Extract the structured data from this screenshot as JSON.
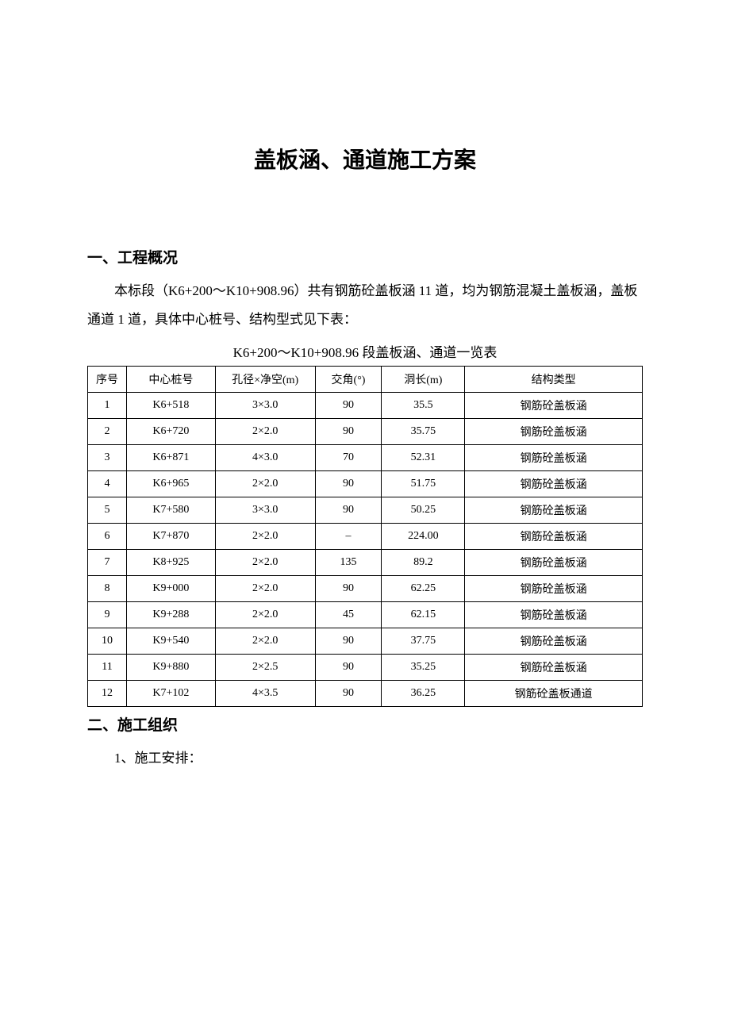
{
  "document": {
    "title": "盖板涵、通道施工方案",
    "section1": {
      "heading": "一、工程概况",
      "paragraph": "本标段（K6+200～K10+908.96）共有钢筋砼盖板涵 11 道，均为钢筋混凝土盖板涵，盖板通道 1 道，具体中心桩号、结构型式见下表：",
      "table_caption": "K6+200～K10+908.96 段盖板涵、通道一览表"
    },
    "table": {
      "columns": [
        "序号",
        "中心桩号",
        "孔径×净空(m)",
        "交角(°)",
        "洞长(m)",
        "结构类型"
      ],
      "rows": [
        [
          "1",
          "K6+518",
          "3×3.0",
          "90",
          "35.5",
          "钢筋砼盖板涵"
        ],
        [
          "2",
          "K6+720",
          "2×2.0",
          "90",
          "35.75",
          "钢筋砼盖板涵"
        ],
        [
          "3",
          "K6+871",
          "4×3.0",
          "70",
          "52.31",
          "钢筋砼盖板涵"
        ],
        [
          "4",
          "K6+965",
          "2×2.0",
          "90",
          "51.75",
          "钢筋砼盖板涵"
        ],
        [
          "5",
          "K7+580",
          "3×3.0",
          "90",
          "50.25",
          "钢筋砼盖板涵"
        ],
        [
          "6",
          "K7+870",
          "2×2.0",
          "–",
          "224.00",
          "钢筋砼盖板涵"
        ],
        [
          "7",
          "K8+925",
          "2×2.0",
          "135",
          "89.2",
          "钢筋砼盖板涵"
        ],
        [
          "8",
          "K9+000",
          "2×2.0",
          "90",
          "62.25",
          "钢筋砼盖板涵"
        ],
        [
          "9",
          "K9+288",
          "2×2.0",
          "45",
          "62.15",
          "钢筋砼盖板涵"
        ],
        [
          "10",
          "K9+540",
          "2×2.0",
          "90",
          "37.75",
          "钢筋砼盖板涵"
        ],
        [
          "11",
          "K9+880",
          "2×2.5",
          "90",
          "35.25",
          "钢筋砼盖板涵"
        ],
        [
          "12",
          "K7+102",
          "4×3.5",
          "90",
          "36.25",
          "钢筋砼盖板通道"
        ]
      ]
    },
    "section2": {
      "heading": "二、施工组织",
      "item1": "1、施工安排："
    }
  },
  "style": {
    "background_color": "#ffffff",
    "text_color": "#000000",
    "border_color": "#000000",
    "title_fontsize": 28,
    "heading_fontsize": 19,
    "body_fontsize": 17,
    "table_fontsize": 14
  }
}
